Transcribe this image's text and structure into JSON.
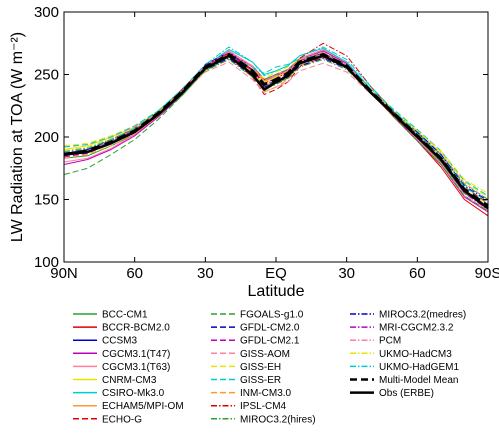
{
  "chart_data": {
    "type": "line",
    "title": "",
    "xlabel": "Latitude",
    "ylabel": "LW Radiation at TOA (W m⁻²)",
    "xlim": [
      -90,
      90
    ],
    "ylim": [
      100,
      300
    ],
    "grid": false,
    "legend_position": "bottom",
    "x_ticks": [
      {
        "value": -90,
        "label": "90N"
      },
      {
        "value": -60,
        "label": "60"
      },
      {
        "value": -30,
        "label": "30"
      },
      {
        "value": 0,
        "label": "EQ"
      },
      {
        "value": 30,
        "label": "30"
      },
      {
        "value": 60,
        "label": "60"
      },
      {
        "value": 90,
        "label": "90S"
      }
    ],
    "y_ticks": [
      {
        "value": 100,
        "label": "100"
      },
      {
        "value": 150,
        "label": "150"
      },
      {
        "value": 200,
        "label": "200"
      },
      {
        "value": 250,
        "label": "250"
      },
      {
        "value": 300,
        "label": "300"
      }
    ],
    "x": [
      -90,
      -80,
      -70,
      -60,
      -50,
      -40,
      -30,
      -20,
      -10,
      -5,
      0,
      5,
      10,
      20,
      30,
      40,
      50,
      60,
      70,
      80,
      90
    ],
    "series": [
      {
        "name": "BCC-CM1",
        "color": "#2ca02c",
        "dash": "solid",
        "values": [
          183,
          185,
          193,
          202,
          216,
          233,
          253,
          264,
          250,
          237,
          243,
          247,
          258,
          265,
          255,
          235,
          217,
          199,
          180,
          155,
          144
        ]
      },
      {
        "name": "BCCR-BCM2.0",
        "color": "#e00000",
        "dash": "solid",
        "values": [
          186,
          188,
          196,
          206,
          220,
          238,
          257,
          267,
          257,
          246,
          250,
          254,
          262,
          267,
          256,
          236,
          216,
          197,
          176,
          150,
          137
        ]
      },
      {
        "name": "CCSM3",
        "color": "#0000cc",
        "dash": "solid",
        "values": [
          187,
          189,
          196,
          205,
          218,
          235,
          255,
          265,
          252,
          240,
          244,
          249,
          259,
          264,
          256,
          236,
          218,
          201,
          182,
          157,
          143
        ]
      },
      {
        "name": "CGCM3.1(T47)",
        "color": "#c000c0",
        "dash": "solid",
        "values": [
          178,
          182,
          190,
          201,
          216,
          234,
          256,
          268,
          256,
          244,
          249,
          253,
          262,
          269,
          259,
          238,
          217,
          197,
          178,
          152,
          140
        ]
      },
      {
        "name": "CGCM3.1(T63)",
        "color": "#ff7f9f",
        "dash": "solid",
        "values": [
          180,
          183,
          191,
          202,
          217,
          235,
          257,
          269,
          257,
          245,
          250,
          254,
          263,
          270,
          260,
          239,
          218,
          198,
          179,
          153,
          141
        ]
      },
      {
        "name": "CNRM-CM3",
        "color": "#e6e600",
        "dash": "solid",
        "values": [
          190,
          193,
          200,
          208,
          221,
          237,
          256,
          266,
          254,
          244,
          248,
          252,
          260,
          266,
          257,
          238,
          220,
          203,
          184,
          158,
          146
        ]
      },
      {
        "name": "CSIRO-Mk3.0",
        "color": "#00cccc",
        "dash": "solid",
        "values": [
          186,
          189,
          196,
          205,
          219,
          236,
          257,
          270,
          260,
          250,
          253,
          257,
          265,
          271,
          260,
          239,
          219,
          200,
          182,
          156,
          143
        ]
      },
      {
        "name": "ECHAM5/MPI-OM",
        "color": "#ff9933",
        "dash": "solid",
        "values": [
          185,
          188,
          195,
          204,
          218,
          235,
          255,
          266,
          252,
          239,
          243,
          248,
          258,
          265,
          256,
          237,
          218,
          200,
          181,
          156,
          143
        ]
      },
      {
        "name": "ECHO-G",
        "color": "#e00000",
        "dash": "dashed",
        "values": [
          187,
          190,
          198,
          207,
          220,
          236,
          255,
          264,
          248,
          234,
          238,
          244,
          256,
          264,
          255,
          236,
          219,
          202,
          184,
          160,
          147
        ]
      },
      {
        "name": "FGOALS-g1.0",
        "color": "#2ca02c",
        "dash": "dashed",
        "values": [
          170,
          175,
          186,
          198,
          214,
          233,
          254,
          266,
          256,
          246,
          250,
          254,
          262,
          268,
          258,
          237,
          216,
          197,
          178,
          153,
          141
        ]
      },
      {
        "name": "GFDL-CM2.0",
        "color": "#0000cc",
        "dash": "dashed",
        "values": [
          185,
          188,
          195,
          205,
          219,
          237,
          258,
          268,
          254,
          241,
          245,
          250,
          260,
          266,
          257,
          238,
          219,
          201,
          183,
          158,
          144
        ]
      },
      {
        "name": "GFDL-CM2.1",
        "color": "#c000c0",
        "dash": "dashed",
        "values": [
          184,
          187,
          195,
          205,
          219,
          236,
          257,
          267,
          253,
          240,
          244,
          249,
          259,
          266,
          257,
          237,
          218,
          200,
          182,
          157,
          143
        ]
      },
      {
        "name": "GISS-AOM",
        "color": "#ff7f9f",
        "dash": "dashed",
        "values": [
          192,
          194,
          200,
          208,
          220,
          235,
          252,
          260,
          246,
          236,
          240,
          244,
          253,
          259,
          252,
          235,
          219,
          204,
          187,
          163,
          150
        ]
      },
      {
        "name": "GISS-EH",
        "color": "#e6e600",
        "dash": "dashed",
        "values": [
          193,
          195,
          201,
          209,
          221,
          236,
          253,
          262,
          253,
          247,
          252,
          256,
          262,
          265,
          256,
          238,
          221,
          205,
          188,
          164,
          152
        ]
      },
      {
        "name": "GISS-ER",
        "color": "#00cccc",
        "dash": "dashed",
        "values": [
          192,
          194,
          200,
          209,
          221,
          237,
          255,
          264,
          256,
          251,
          256,
          258,
          263,
          266,
          257,
          239,
          222,
          206,
          189,
          165,
          153
        ]
      },
      {
        "name": "INM-CM3.0",
        "color": "#ff9933",
        "dash": "dashed",
        "values": [
          183,
          186,
          193,
          203,
          217,
          235,
          255,
          266,
          250,
          236,
          240,
          246,
          257,
          264,
          255,
          236,
          217,
          199,
          181,
          156,
          142
        ]
      },
      {
        "name": "IPSL-CM4",
        "color": "#e00000",
        "dash": "dashdot",
        "values": [
          189,
          191,
          198,
          207,
          220,
          237,
          257,
          267,
          254,
          243,
          247,
          252,
          263,
          275,
          265,
          241,
          220,
          201,
          182,
          156,
          144
        ]
      },
      {
        "name": "MIROC3.2(hires)",
        "color": "#2ca02c",
        "dash": "dashdot",
        "values": [
          188,
          191,
          198,
          206,
          219,
          235,
          253,
          262,
          248,
          238,
          242,
          247,
          256,
          262,
          254,
          236,
          219,
          203,
          186,
          162,
          150
        ]
      },
      {
        "name": "MIROC3.2(medres)",
        "color": "#0000cc",
        "dash": "dashdot",
        "values": [
          187,
          190,
          197,
          206,
          219,
          236,
          254,
          263,
          249,
          239,
          243,
          248,
          257,
          263,
          255,
          237,
          220,
          204,
          186,
          161,
          149
        ]
      },
      {
        "name": "MRI-CGCM2.3.2",
        "color": "#c000c0",
        "dash": "dashdot",
        "values": [
          185,
          188,
          196,
          206,
          219,
          236,
          256,
          266,
          253,
          242,
          246,
          251,
          261,
          267,
          258,
          238,
          219,
          200,
          181,
          155,
          142
        ]
      },
      {
        "name": "PCM",
        "color": "#ff7f9f",
        "dash": "dashdot",
        "values": [
          186,
          189,
          197,
          206,
          220,
          237,
          257,
          268,
          256,
          245,
          249,
          253,
          262,
          268,
          258,
          238,
          219,
          201,
          182,
          157,
          144
        ]
      },
      {
        "name": "UKMO-HadCM3",
        "color": "#e6e600",
        "dash": "dashdot",
        "values": [
          189,
          192,
          199,
          207,
          220,
          236,
          255,
          265,
          252,
          241,
          245,
          250,
          259,
          266,
          257,
          238,
          221,
          205,
          189,
          166,
          155
        ]
      },
      {
        "name": "UKMO-HadGEM1",
        "color": "#00cccc",
        "dash": "dashdot",
        "values": [
          188,
          191,
          198,
          207,
          221,
          238,
          258,
          272,
          260,
          249,
          253,
          257,
          265,
          272,
          262,
          241,
          221,
          203,
          185,
          160,
          148
        ]
      },
      {
        "name": "Multi-Model Mean",
        "color": "#000000",
        "dash": "thickdash",
        "values": [
          186,
          189,
          196,
          205,
          219,
          236,
          256,
          266,
          253,
          242,
          246,
          251,
          260,
          266,
          257,
          237,
          219,
          201,
          183,
          158,
          145
        ]
      },
      {
        "name": "Obs (ERBE)",
        "color": "#000000",
        "dash": "thicksolid",
        "values": [
          186,
          188,
          195,
          204,
          218,
          235,
          255,
          265,
          250,
          238,
          244,
          249,
          259,
          265,
          256,
          236,
          218,
          200,
          182,
          157,
          143
        ]
      }
    ]
  }
}
